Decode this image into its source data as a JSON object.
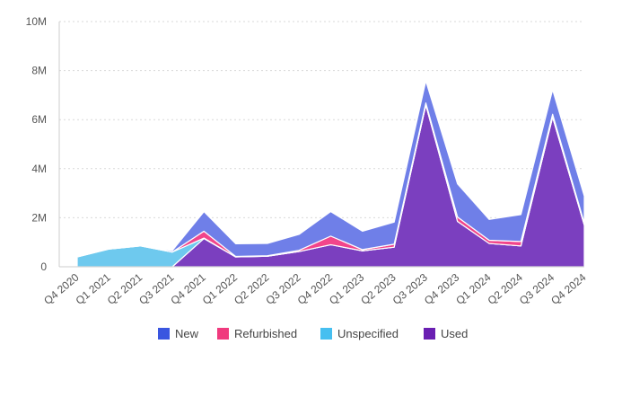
{
  "chart_data": {
    "type": "area",
    "stacked": true,
    "title": "",
    "xlabel": "",
    "ylabel": "",
    "categories": [
      "Q4 2020",
      "Q1 2021",
      "Q2 2021",
      "Q3 2021",
      "Q4 2021",
      "Q1 2022",
      "Q2 2022",
      "Q3 2022",
      "Q4 2022",
      "Q1 2023",
      "Q2 2023",
      "Q3 2023",
      "Q4 2023",
      "Q1 2024",
      "Q2 2024",
      "Q3 2024",
      "Q4 2024"
    ],
    "y_ticks": [
      "0",
      "2M",
      "4M",
      "6M",
      "8M",
      "10M"
    ],
    "ylim": [
      0,
      10000000
    ],
    "grid": true,
    "legend_position": "bottom",
    "series": [
      {
        "name": "Used",
        "color": "#7b3fbf",
        "values": [
          0,
          0,
          0,
          0,
          1150000,
          400000,
          430000,
          620000,
          900000,
          650000,
          800000,
          6600000,
          1850000,
          950000,
          850000,
          6100000,
          1700000
        ]
      },
      {
        "name": "Unspecified",
        "color": "#6ec9ee",
        "values": [
          400000,
          720000,
          850000,
          600000,
          20000,
          0,
          0,
          0,
          0,
          0,
          0,
          0,
          0,
          0,
          0,
          0,
          0
        ]
      },
      {
        "name": "Refurbished",
        "color": "#f2458b",
        "values": [
          0,
          0,
          0,
          0,
          280000,
          20000,
          20000,
          50000,
          350000,
          50000,
          120000,
          80000,
          180000,
          130000,
          180000,
          120000,
          80000
        ]
      },
      {
        "name": "New",
        "color": "#6f7fe8",
        "values": [
          0,
          0,
          0,
          60000,
          800000,
          520000,
          500000,
          650000,
          1000000,
          750000,
          900000,
          900000,
          1350000,
          850000,
          1100000,
          1000000,
          1100000
        ]
      }
    ],
    "legend": [
      {
        "label": "New",
        "color": "#3a56e0"
      },
      {
        "label": "Refurbished",
        "color": "#f03a7e"
      },
      {
        "label": "Unspecified",
        "color": "#46bff0"
      },
      {
        "label": "Used",
        "color": "#6a1fb2"
      }
    ]
  }
}
